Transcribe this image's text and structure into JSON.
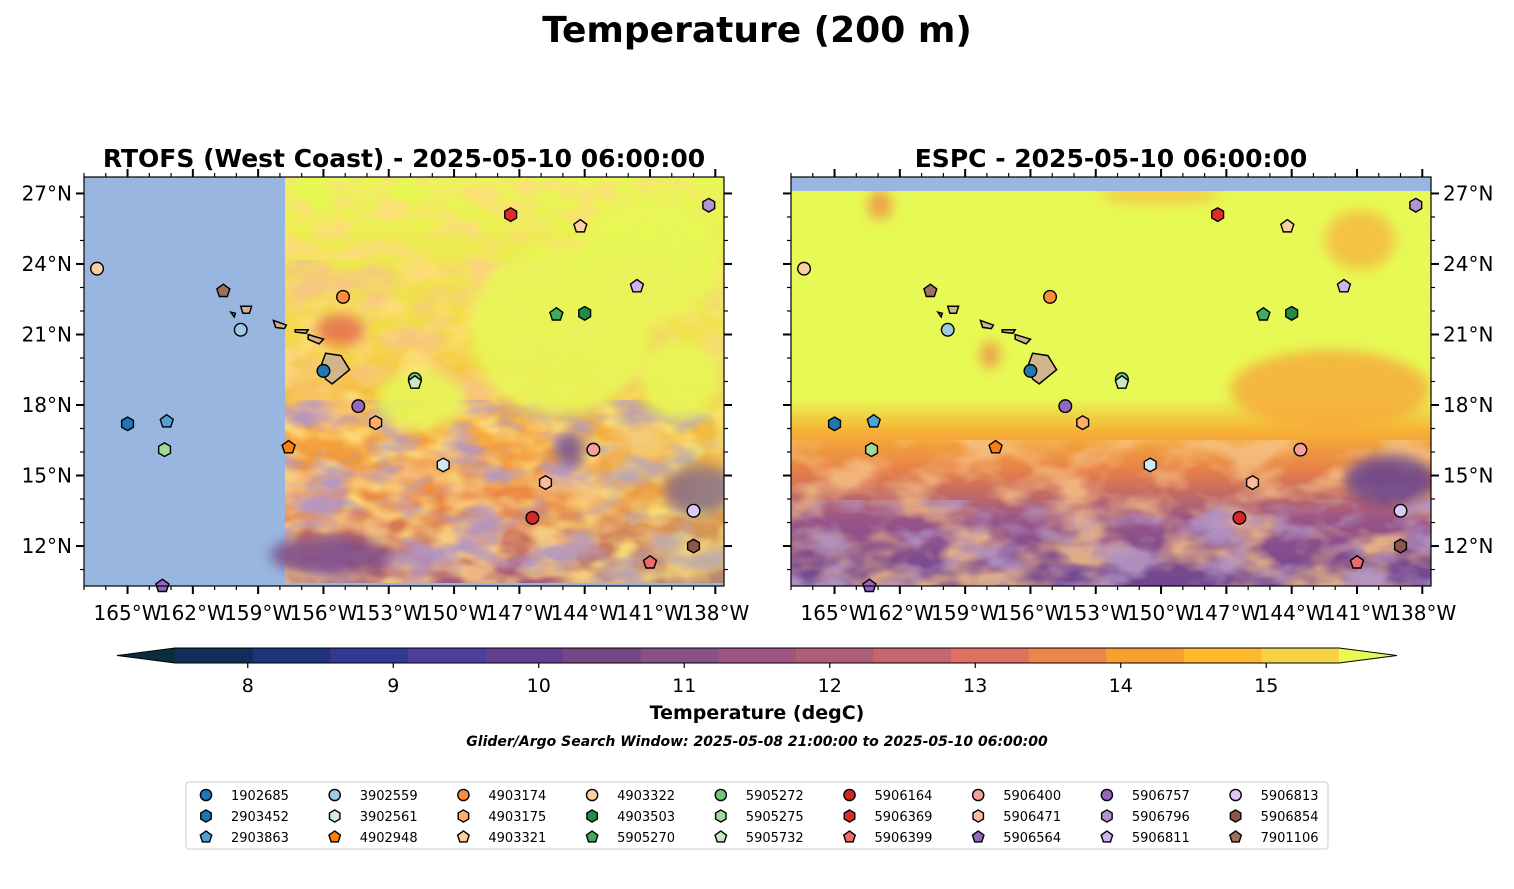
{
  "figure": {
    "title": "Temperature (200 m)",
    "search_window_note": "Glider/Argo Search Window: 2025-05-08 21:00:00 to 2025-05-10 06:00:00"
  },
  "chart_data": [
    {
      "type": "heatmap",
      "title": "RTOFS (West Coast) - 2025-05-10 06:00:00",
      "model": "RTOFS (West Coast)",
      "xlim": [
        -167,
        -137.6
      ],
      "ylim": [
        10.3,
        27.7
      ],
      "x_ticks": [
        "165°W",
        "162°W",
        "159°W",
        "156°W",
        "153°W",
        "150°W",
        "147°W",
        "144°W",
        "141°W",
        "138°W"
      ],
      "y_ticks": [
        "27°N",
        "24°N",
        "21°N",
        "18°N",
        "15°N",
        "12°N"
      ],
      "y_tick_side": "left",
      "model_domain_west_edge_lon": -157.8
    },
    {
      "type": "heatmap",
      "title": "ESPC - 2025-05-10 06:00:00",
      "model": "ESPC",
      "xlim": [
        -167,
        -137.6
      ],
      "ylim": [
        10.3,
        27.7
      ],
      "x_ticks": [
        "165°W",
        "162°W",
        "159°W",
        "156°W",
        "153°W",
        "150°W",
        "147°W",
        "144°W",
        "141°W",
        "138°W"
      ],
      "y_ticks": [
        "27°N",
        "24°N",
        "21°N",
        "18°N",
        "15°N",
        "12°N"
      ],
      "y_tick_side": "right"
    }
  ],
  "colorbar": {
    "label": "Temperature (degC)",
    "range": [
      7.5,
      15.5
    ],
    "step": 0.5,
    "ticks": [
      "8",
      "9",
      "10",
      "11",
      "12",
      "13",
      "14",
      "15"
    ],
    "extend": "both",
    "colors": [
      "#0b2c3d",
      "#102f58",
      "#1d337a",
      "#353893",
      "#4f3e9b",
      "#633f8f",
      "#744787",
      "#884f88",
      "#9d5682",
      "#b05e77",
      "#c8666e",
      "#dd705f",
      "#ec8549",
      "#f99f32",
      "#feb82c",
      "#f7d447",
      "#e7f954"
    ]
  },
  "glider_floats": [
    {
      "id": "1902685",
      "marker": "circle",
      "color": "#1f77b4",
      "lon": -156.0,
      "lat": 19.45
    },
    {
      "id": "2903452",
      "marker": "hexagon",
      "color": "#1f77b4",
      "lon": -165.0,
      "lat": 17.2
    },
    {
      "id": "2903863",
      "marker": "pentagon",
      "color": "#4da3d8",
      "lon": -163.2,
      "lat": 17.3
    },
    {
      "id": "3902559",
      "marker": "circle",
      "color": "#9ecae1",
      "lon": -159.8,
      "lat": 21.2
    },
    {
      "id": "3902561",
      "marker": "hexagon",
      "color": "#cfe8f3",
      "lon": -150.5,
      "lat": 15.45
    },
    {
      "id": "4902948",
      "marker": "pentagon",
      "color": "#ff7f0e",
      "lon": -157.6,
      "lat": 16.2
    },
    {
      "id": "4903174",
      "marker": "circle",
      "color": "#fd8d3c",
      "lon": -155.1,
      "lat": 22.6
    },
    {
      "id": "4903175",
      "marker": "hexagon",
      "color": "#fdae6b",
      "lon": -153.6,
      "lat": 17.25
    },
    {
      "id": "4903321",
      "marker": "pentagon",
      "color": "#fdd0a2",
      "lon": -144.2,
      "lat": 25.6
    },
    {
      "id": "4903322",
      "marker": "circle",
      "color": "#fdd0a2",
      "lon": -166.4,
      "lat": 23.8
    },
    {
      "id": "4903503",
      "marker": "hexagon",
      "color": "#238b45",
      "lon": -144.0,
      "lat": 21.9
    },
    {
      "id": "5905270",
      "marker": "pentagon",
      "color": "#41ab5d",
      "lon": -145.3,
      "lat": 21.85
    },
    {
      "id": "5905272",
      "marker": "circle",
      "color": "#74c476",
      "lon": -151.8,
      "lat": 19.1
    },
    {
      "id": "5905275",
      "marker": "hexagon",
      "color": "#a1d99b",
      "lon": -163.3,
      "lat": 16.1
    },
    {
      "id": "5905732",
      "marker": "pentagon",
      "color": "#c7e9c0",
      "lon": -151.8,
      "lat": 18.95
    },
    {
      "id": "5906164",
      "marker": "circle",
      "color": "#d62728",
      "lon": -146.4,
      "lat": 13.2
    },
    {
      "id": "5906369",
      "marker": "hexagon",
      "color": "#de2d26",
      "lon": -147.4,
      "lat": 26.1
    },
    {
      "id": "5906399",
      "marker": "pentagon",
      "color": "#ef6b6b",
      "lon": -141.0,
      "lat": 11.3
    },
    {
      "id": "5906400",
      "marker": "circle",
      "color": "#f4a09c",
      "lon": -143.6,
      "lat": 16.1
    },
    {
      "id": "5906471",
      "marker": "hexagon",
      "color": "#fcbba1",
      "lon": -145.8,
      "lat": 14.7
    },
    {
      "id": "5906564",
      "marker": "pentagon",
      "color": "#9467bd",
      "lon": -163.4,
      "lat": 10.3
    },
    {
      "id": "5906757",
      "marker": "circle",
      "color": "#9467bd",
      "lon": -154.4,
      "lat": 17.95
    },
    {
      "id": "5906796",
      "marker": "hexagon",
      "color": "#b294d4",
      "lon": -138.3,
      "lat": 26.5
    },
    {
      "id": "5906811",
      "marker": "pentagon",
      "color": "#cbb4ef",
      "lon": -141.6,
      "lat": 23.05
    },
    {
      "id": "5906813",
      "marker": "circle",
      "color": "#dcc8f5",
      "lon": -139.0,
      "lat": 13.5
    },
    {
      "id": "5906854",
      "marker": "hexagon",
      "color": "#8c564b",
      "lon": -139.0,
      "lat": 12.0
    },
    {
      "id": "7901106",
      "marker": "pentagon",
      "color": "#a0705f",
      "lon": -160.6,
      "lat": 22.85
    }
  ],
  "legend_order": [
    "1902685",
    "2903452",
    "2903863",
    "3902559",
    "3902561",
    "4902948",
    "4903174",
    "4903175",
    "4903321",
    "4903322",
    "4903503",
    "5905270",
    "5905272",
    "5905275",
    "5905732",
    "5906164",
    "5906369",
    "5906399",
    "5906400",
    "5906471",
    "5906564",
    "5906757",
    "5906796",
    "5906811",
    "5906813",
    "5906854",
    "7901106"
  ],
  "style": {
    "land_color": "#d2b48c",
    "no_data_color": "#98b6e0",
    "warm_color": "#e7f954"
  }
}
